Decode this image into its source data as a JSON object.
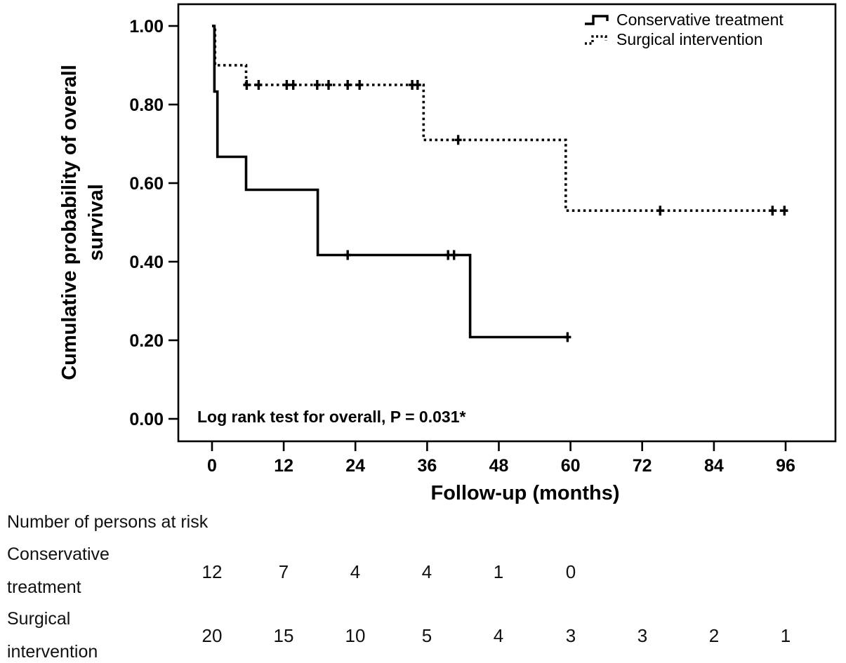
{
  "chart_data": {
    "type": "line",
    "subtype": "kaplan-meier-step",
    "title": "",
    "xlabel": "Follow-up (months)",
    "ylabel": "Cumulative probability of overall survival",
    "ylabel_lines": [
      "Cumulative probability of overall",
      "survival"
    ],
    "x_ticks": [
      "0",
      "12",
      "24",
      "36",
      "48",
      "60",
      "72",
      "84",
      "96"
    ],
    "x_tick_values": [
      0,
      12,
      24,
      36,
      48,
      60,
      72,
      84,
      96
    ],
    "y_ticks": [
      "0.00",
      "0.20",
      "0.40",
      "0.60",
      "0.80",
      "1.00"
    ],
    "y_tick_values": [
      0,
      0.2,
      0.4,
      0.6,
      0.8,
      1.0
    ],
    "xlim": [
      -5.8,
      104.5
    ],
    "ylim": [
      -0.06,
      1.06
    ],
    "grid": false,
    "legend_position": "top-right",
    "annotation": "Log rank test for overall, P = 0.031*",
    "p_value": "0.031",
    "series": [
      {
        "name": "Conservative treatment",
        "style": "solid",
        "steps": [
          [
            0,
            1.0
          ],
          [
            0.4,
            1.0
          ],
          [
            0.4,
            0.833
          ],
          [
            0.9,
            0.833
          ],
          [
            0.9,
            0.667
          ],
          [
            5.7,
            0.667
          ],
          [
            5.7,
            0.583
          ],
          [
            17.7,
            0.583
          ],
          [
            17.7,
            0.417
          ],
          [
            43.2,
            0.417
          ],
          [
            43.2,
            0.208
          ],
          [
            59.5,
            0.208
          ]
        ],
        "censored": [
          [
            22.7,
            0.417
          ],
          [
            39.5,
            0.417
          ],
          [
            40.5,
            0.417
          ],
          [
            59.5,
            0.208
          ]
        ]
      },
      {
        "name": "Surgical intervention",
        "style": "dotted",
        "steps": [
          [
            0,
            1.0
          ],
          [
            0.5,
            1.0
          ],
          [
            0.5,
            0.9
          ],
          [
            5.7,
            0.9
          ],
          [
            5.7,
            0.85
          ],
          [
            35.4,
            0.85
          ],
          [
            35.4,
            0.71
          ],
          [
            59.2,
            0.71
          ],
          [
            59.2,
            0.53
          ],
          [
            96.9,
            0.53
          ]
        ],
        "censored": [
          [
            5.8,
            0.85
          ],
          [
            7.8,
            0.85
          ],
          [
            12.5,
            0.85
          ],
          [
            13.6,
            0.85
          ],
          [
            17.6,
            0.85
          ],
          [
            19.5,
            0.85
          ],
          [
            22.7,
            0.85
          ],
          [
            24.7,
            0.85
          ],
          [
            33.5,
            0.85
          ],
          [
            34.4,
            0.85
          ],
          [
            41.2,
            0.71
          ],
          [
            75,
            0.53
          ],
          [
            93.8,
            0.53
          ],
          [
            95.8,
            0.53
          ]
        ]
      }
    ]
  },
  "risk_table": {
    "title": "Number of persons at risk",
    "months": [
      0,
      12,
      24,
      36,
      48,
      60,
      72,
      84,
      96
    ],
    "rows": [
      {
        "label": "Conservative treatment",
        "label_lines": [
          "Conservative",
          "treatment"
        ],
        "counts": [
          12,
          7,
          4,
          4,
          1,
          0
        ]
      },
      {
        "label": "Surgical intervention",
        "label_lines": [
          "Surgical",
          "intervention"
        ],
        "counts": [
          20,
          15,
          10,
          5,
          4,
          3,
          3,
          2,
          1
        ]
      }
    ]
  },
  "colors": {
    "line": "#000000",
    "background": "#ffffff"
  }
}
